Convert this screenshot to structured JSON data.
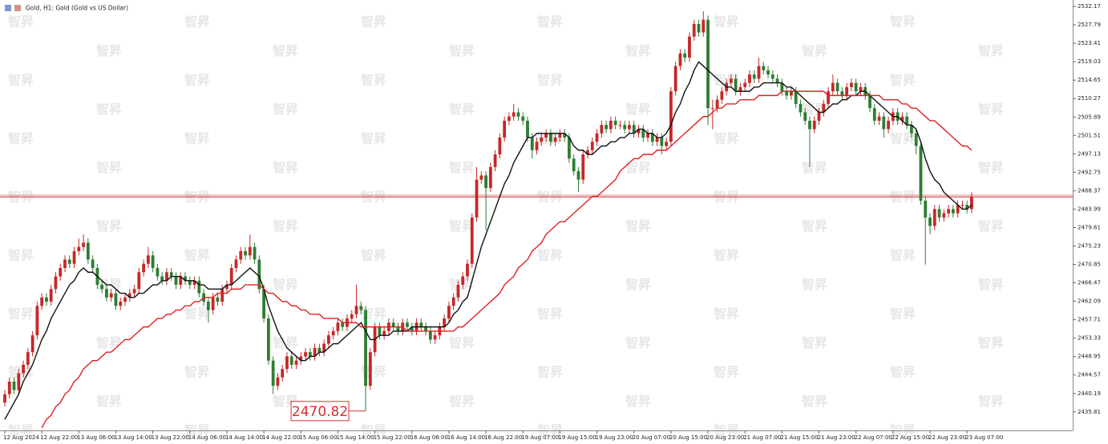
{
  "chart_data": {
    "type": "candlestick",
    "title": "Gold, H1: Gold (Gold vs US Dollar)",
    "watermark": "智昇",
    "x_labels": [
      "12 Aug 2024",
      "12 Aug 22:00",
      "13 Aug 06:00",
      "13 Aug 14:00",
      "13 Aug 22:00",
      "14 Aug 06:00",
      "14 Aug 14:00",
      "14 Aug 22:00",
      "15 Aug 06:00",
      "15 Aug 14:00",
      "15 Aug 22:00",
      "16 Aug 06:00",
      "16 Aug 14:00",
      "16 Aug 22:00",
      "19 Aug 07:00",
      "19 Aug 15:00",
      "19 Aug 23:00",
      "20 Aug 07:00",
      "20 Aug 15:00",
      "20 Aug 23:00",
      "21 Aug 07:00",
      "21 Aug 15:00",
      "21 Aug 23:00",
      "22 Aug 07:00",
      "22 Aug 15:00",
      "22 Aug 23:00",
      "23 Aug 07:00"
    ],
    "open": [
      2438,
      2440,
      2443,
      2441,
      2445,
      2447,
      2450,
      2454,
      2461,
      2463,
      2462,
      2465,
      2468,
      2470,
      2472,
      2471,
      2474,
      2475,
      2476,
      2472,
      2470,
      2466,
      2465,
      2463,
      2464,
      2461,
      2462,
      2463,
      2464,
      2465,
      2469,
      2471,
      2473,
      2470,
      2468,
      2467,
      2469,
      2468,
      2466,
      2468,
      2467,
      2466,
      2467,
      2464,
      2462,
      2460,
      2463,
      2462,
      2465,
      2466,
      2470,
      2472,
      2474,
      2473,
      2475,
      2472,
      2465,
      2458,
      2448,
      2442,
      2444,
      2446,
      2449,
      2447,
      2448,
      2449,
      2450,
      2449,
      2451,
      2450,
      2452,
      2454,
      2455,
      2457,
      2456,
      2458,
      2459,
      2461,
      2460,
      2442,
      2450,
      2456,
      2454,
      2455,
      2457,
      2456,
      2455,
      2457,
      2456,
      2455,
      2457,
      2456,
      2455,
      2453,
      2454,
      2456,
      2458,
      2461,
      2463,
      2466,
      2468,
      2471,
      2482,
      2491,
      2492,
      2489,
      2494,
      2497,
      2501,
      2505,
      2506,
      2507,
      2506,
      2505,
      2501,
      2498,
      2500,
      2501,
      2502,
      2500,
      2501,
      2502,
      2501,
      2496,
      2493,
      2491,
      2497,
      2498,
      2500,
      2502,
      2504,
      2503,
      2505,
      2504,
      2504,
      2503,
      2504,
      2502,
      2503,
      2501,
      2502,
      2500,
      2501,
      2499,
      2500,
      2512,
      2518,
      2521,
      2520,
      2525,
      2528,
      2526,
      2529,
      2508,
      2508,
      2510,
      2512,
      2514,
      2515,
      2512,
      2513,
      2514,
      2516,
      2515,
      2518,
      2517,
      2516,
      2515,
      2514,
      2512,
      2511,
      2512,
      2509,
      2507,
      2505,
      2503,
      2505,
      2507,
      2509,
      2512,
      2514,
      2512,
      2511,
      2513,
      2514,
      2512,
      2513,
      2511,
      2508,
      2505,
      2506,
      2503,
      2505,
      2507,
      2505,
      2506,
      2504,
      2502,
      2499,
      2486,
      2482,
      2480,
      2484,
      2482,
      2483,
      2484,
      2483,
      2485,
      2485,
      2484
    ],
    "high": [
      2441,
      2444,
      2444,
      2446,
      2448,
      2451,
      2455,
      2462,
      2464,
      2464,
      2466,
      2469,
      2471,
      2473,
      2473,
      2475,
      2477,
      2478,
      2477,
      2473,
      2471,
      2467,
      2466,
      2465,
      2465,
      2463,
      2464,
      2465,
      2466,
      2470,
      2472,
      2475,
      2474,
      2471,
      2469,
      2470,
      2470,
      2469,
      2469,
      2469,
      2468,
      2468,
      2468,
      2465,
      2463,
      2464,
      2464,
      2466,
      2467,
      2471,
      2473,
      2475,
      2475,
      2478,
      2476,
      2473,
      2466,
      2459,
      2449,
      2445,
      2447,
      2450,
      2450,
      2449,
      2450,
      2451,
      2451,
      2452,
      2452,
      2453,
      2455,
      2456,
      2458,
      2458,
      2459,
      2460,
      2466,
      2462,
      2461,
      2451,
      2457,
      2457,
      2456,
      2458,
      2458,
      2457,
      2458,
      2458,
      2457,
      2458,
      2458,
      2457,
      2456,
      2455,
      2457,
      2459,
      2462,
      2464,
      2467,
      2469,
      2472,
      2483,
      2494,
      2493,
      2493,
      2495,
      2498,
      2502,
      2506,
      2507,
      2509,
      2508,
      2507,
      2506,
      2502,
      2501,
      2502,
      2503,
      2503,
      2502,
      2503,
      2503,
      2502,
      2497,
      2494,
      2498,
      2499,
      2501,
      2503,
      2505,
      2505,
      2506,
      2506,
      2505,
      2505,
      2505,
      2505,
      2504,
      2504,
      2503,
      2503,
      2502,
      2502,
      2501,
      2513,
      2519,
      2522,
      2522,
      2526,
      2529,
      2529,
      2531,
      2530,
      2510,
      2511,
      2513,
      2515,
      2516,
      2516,
      2514,
      2515,
      2517,
      2517,
      2520,
      2519,
      2518,
      2517,
      2516,
      2515,
      2513,
      2513,
      2513,
      2510,
      2508,
      2506,
      2506,
      2508,
      2510,
      2513,
      2516,
      2515,
      2513,
      2514,
      2515,
      2515,
      2514,
      2514,
      2512,
      2509,
      2507,
      2507,
      2506,
      2508,
      2508,
      2507,
      2507,
      2505,
      2503,
      2500,
      2487,
      2483,
      2485,
      2485,
      2484,
      2485,
      2485,
      2486,
      2486,
      2486,
      2488
    ],
    "low": [
      2437,
      2439,
      2440,
      2440,
      2444,
      2446,
      2449,
      2453,
      2460,
      2461,
      2461,
      2464,
      2467,
      2469,
      2470,
      2470,
      2473,
      2474,
      2471,
      2469,
      2465,
      2464,
      2462,
      2462,
      2460,
      2460,
      2461,
      2462,
      2463,
      2464,
      2468,
      2470,
      2469,
      2467,
      2466,
      2466,
      2467,
      2465,
      2465,
      2466,
      2465,
      2465,
      2463,
      2461,
      2457,
      2459,
      2461,
      2461,
      2464,
      2465,
      2469,
      2471,
      2472,
      2472,
      2471,
      2464,
      2457,
      2447,
      2440,
      2441,
      2443,
      2445,
      2446,
      2446,
      2447,
      2448,
      2448,
      2448,
      2449,
      2449,
      2451,
      2453,
      2454,
      2455,
      2455,
      2457,
      2458,
      2459,
      2436,
      2441,
      2449,
      2453,
      2453,
      2454,
      2455,
      2454,
      2454,
      2455,
      2454,
      2454,
      2455,
      2454,
      2452,
      2452,
      2453,
      2455,
      2457,
      2460,
      2462,
      2465,
      2467,
      2470,
      2481,
      2490,
      2479,
      2488,
      2493,
      2496,
      2500,
      2504,
      2505,
      2505,
      2504,
      2500,
      2496,
      2497,
      2499,
      2500,
      2499,
      2499,
      2500,
      2500,
      2495,
      2492,
      2488,
      2490,
      2496,
      2497,
      2499,
      2501,
      2502,
      2502,
      2503,
      2503,
      2502,
      2502,
      2501,
      2501,
      2500,
      2500,
      2499,
      2499,
      2497,
      2498,
      2499,
      2511,
      2517,
      2519,
      2519,
      2524,
      2525,
      2525,
      2504,
      2503,
      2507,
      2509,
      2511,
      2513,
      2511,
      2511,
      2512,
      2513,
      2514,
      2514,
      2516,
      2515,
      2514,
      2513,
      2511,
      2510,
      2510,
      2508,
      2506,
      2504,
      2494,
      2502,
      2504,
      2506,
      2508,
      2511,
      2511,
      2510,
      2510,
      2512,
      2511,
      2511,
      2510,
      2507,
      2504,
      2504,
      2501,
      2502,
      2504,
      2504,
      2504,
      2503,
      2501,
      2497,
      2485,
      2470.82,
      2478,
      2479,
      2481,
      2481,
      2482,
      2482,
      2482,
      2484,
      2483,
      2483
    ],
    "close": [
      2440,
      2443,
      2441,
      2445,
      2447,
      2450,
      2454,
      2461,
      2463,
      2462,
      2465,
      2468,
      2470,
      2472,
      2471,
      2474,
      2475,
      2476,
      2472,
      2470,
      2466,
      2465,
      2463,
      2464,
      2461,
      2462,
      2463,
      2464,
      2465,
      2469,
      2471,
      2473,
      2470,
      2468,
      2467,
      2469,
      2468,
      2466,
      2468,
      2467,
      2466,
      2467,
      2464,
      2462,
      2460,
      2463,
      2462,
      2465,
      2466,
      2470,
      2472,
      2474,
      2473,
      2475,
      2472,
      2465,
      2458,
      2448,
      2442,
      2444,
      2446,
      2449,
      2447,
      2448,
      2449,
      2450,
      2449,
      2451,
      2450,
      2452,
      2454,
      2455,
      2457,
      2456,
      2458,
      2459,
      2461,
      2460,
      2442,
      2450,
      2456,
      2454,
      2455,
      2457,
      2456,
      2455,
      2457,
      2456,
      2455,
      2457,
      2456,
      2455,
      2453,
      2454,
      2456,
      2458,
      2461,
      2463,
      2466,
      2468,
      2471,
      2482,
      2491,
      2492,
      2489,
      2494,
      2497,
      2501,
      2505,
      2506,
      2507,
      2506,
      2505,
      2501,
      2498,
      2500,
      2501,
      2502,
      2500,
      2501,
      2502,
      2501,
      2496,
      2493,
      2491,
      2497,
      2498,
      2500,
      2502,
      2504,
      2503,
      2505,
      2504,
      2504,
      2503,
      2504,
      2502,
      2503,
      2501,
      2502,
      2500,
      2501,
      2499,
      2500,
      2512,
      2518,
      2521,
      2520,
      2525,
      2528,
      2526,
      2529,
      2508,
      2508,
      2510,
      2512,
      2514,
      2515,
      2512,
      2513,
      2514,
      2516,
      2515,
      2518,
      2517,
      2516,
      2515,
      2514,
      2512,
      2511,
      2512,
      2509,
      2507,
      2505,
      2503,
      2505,
      2507,
      2509,
      2512,
      2514,
      2512,
      2511,
      2513,
      2514,
      2512,
      2513,
      2511,
      2508,
      2505,
      2506,
      2503,
      2505,
      2507,
      2505,
      2506,
      2504,
      2502,
      2499,
      2486,
      2482,
      2480,
      2484,
      2482,
      2483,
      2484,
      2483,
      2485,
      2485,
      2484,
      2487
    ],
    "up_color": "#c62828",
    "down_color": "#2e7d32",
    "lines": [
      {
        "color": "#111111",
        "values": [
          2434,
          2436,
          2438,
          2440,
          2443,
          2445,
          2447,
          2450,
          2453,
          2455,
          2458,
          2460,
          2462,
          2464,
          2466,
          2467,
          2469,
          2470,
          2469,
          2469,
          2468,
          2467,
          2466,
          2466,
          2465,
          2464,
          2464,
          2463,
          2463,
          2464,
          2464,
          2465,
          2466,
          2466,
          2467,
          2467,
          2468,
          2468,
          2468,
          2467,
          2467,
          2467,
          2466,
          2466,
          2465,
          2465,
          2465,
          2465,
          2466,
          2466,
          2467,
          2468,
          2469,
          2470,
          2469,
          2468,
          2465,
          2461,
          2458,
          2455,
          2453,
          2451,
          2450,
          2449,
          2448,
          2448,
          2449,
          2449,
          2450,
          2450,
          2451,
          2452,
          2452,
          2453,
          2454,
          2455,
          2456,
          2457,
          2455,
          2453,
          2453,
          2454,
          2454,
          2454,
          2455,
          2455,
          2455,
          2455,
          2456,
          2456,
          2456,
          2456,
          2456,
          2456,
          2456,
          2456,
          2457,
          2459,
          2460,
          2462,
          2463,
          2467,
          2471,
          2475,
          2478,
          2481,
          2484,
          2487,
          2490,
          2492,
          2495,
          2497,
          2499,
          2501,
          2501,
          2502,
          2502,
          2502,
          2502,
          2502,
          2502,
          2502,
          2501,
          2499,
          2498,
          2498,
          2497,
          2497,
          2498,
          2499,
          2499,
          2500,
          2500,
          2501,
          2501,
          2502,
          2502,
          2503,
          2503,
          2502,
          2502,
          2501,
          2501,
          2502,
          2504,
          2507,
          2509,
          2512,
          2514,
          2517,
          2519,
          2518,
          2517,
          2516,
          2515,
          2514,
          2513,
          2513,
          2512,
          2512,
          2512,
          2512,
          2513,
          2513,
          2514,
          2514,
          2514,
          2514,
          2514,
          2513,
          2513,
          2512,
          2511,
          2510,
          2509,
          2508,
          2507,
          2507,
          2508,
          2509,
          2509,
          2510,
          2510,
          2511,
          2511,
          2512,
          2512,
          2511,
          2510,
          2509,
          2508,
          2507,
          2506,
          2506,
          2505,
          2504,
          2504,
          2503,
          2500,
          2496,
          2493,
          2491,
          2490,
          2488,
          2487,
          2486,
          2485,
          2484,
          2484,
          2485
        ]
      },
      {
        "color": "#e02020",
        "values": [
          null,
          null,
          null,
          null,
          null,
          null,
          null,
          null,
          2432,
          2434,
          2435,
          2437,
          2438,
          2440,
          2441,
          2443,
          2444,
          2446,
          2447,
          2448,
          2448,
          2449,
          2450,
          2450,
          2451,
          2452,
          2453,
          2453,
          2454,
          2455,
          2456,
          2456,
          2457,
          2458,
          2458,
          2459,
          2459,
          2460,
          2460,
          2461,
          2461,
          2462,
          2462,
          2463,
          2463,
          2463,
          2464,
          2464,
          2464,
          2465,
          2465,
          2465,
          2466,
          2466,
          2466,
          2466,
          2465,
          2464,
          2464,
          2463,
          2462,
          2462,
          2461,
          2461,
          2460,
          2460,
          2459,
          2459,
          2459,
          2458,
          2458,
          2458,
          2458,
          2457,
          2457,
          2457,
          2457,
          2456,
          2456,
          2456,
          2456,
          2456,
          2456,
          2456,
          2456,
          2456,
          2456,
          2455,
          2455,
          2455,
          2455,
          2455,
          2455,
          2455,
          2455,
          2455,
          2455,
          2455,
          2456,
          2456,
          2457,
          2458,
          2459,
          2460,
          2461,
          2462,
          2463,
          2464,
          2466,
          2467,
          2468,
          2470,
          2471,
          2472,
          2474,
          2475,
          2476,
          2478,
          2479,
          2480,
          2481,
          2481,
          2482,
          2483,
          2484,
          2485,
          2486,
          2487,
          2487,
          2488,
          2489,
          2490,
          2491,
          2493,
          2494,
          2495,
          2496,
          2496,
          2497,
          2497,
          2497,
          2498,
          2498,
          2498,
          2499,
          2500,
          2501,
          2502,
          2503,
          2504,
          2505,
          2506,
          2506,
          2507,
          2508,
          2508,
          2509,
          2509,
          2509,
          2510,
          2510,
          2510,
          2510,
          2511,
          2511,
          2511,
          2511,
          2511,
          2512,
          2512,
          2512,
          2512,
          2512,
          2512,
          2512,
          2512,
          2512,
          2512,
          2511,
          2511,
          2511,
          2511,
          2511,
          2511,
          2511,
          2511,
          2511,
          2511,
          2511,
          2511,
          2510,
          2510,
          2510,
          2510,
          2509,
          2509,
          2508,
          2508,
          2507,
          2506,
          2505,
          2505,
          2504,
          2503,
          2502,
          2501,
          2500,
          2499,
          2499,
          2498
        ]
      }
    ],
    "ylim": [
      2431.4,
      2533.7
    ],
    "yticks": [
      2532.17,
      2527.79,
      2523.41,
      2519.03,
      2514.65,
      2510.27,
      2505.89,
      2501.51,
      2497.13,
      2492.75,
      2488.37,
      2483.99,
      2479.61,
      2475.23,
      2470.85,
      2466.47,
      2462.09,
      2457.71,
      2453.33,
      2448.95,
      2444.57,
      2440.19,
      2435.81
    ],
    "price_lines": [
      {
        "value": 2487.3,
        "color": "#e88a8a"
      },
      {
        "value": 2486.9,
        "color": "#c62828"
      }
    ],
    "annotations": [
      {
        "text": "2470.82",
        "color": "#d32f2f"
      }
    ]
  }
}
